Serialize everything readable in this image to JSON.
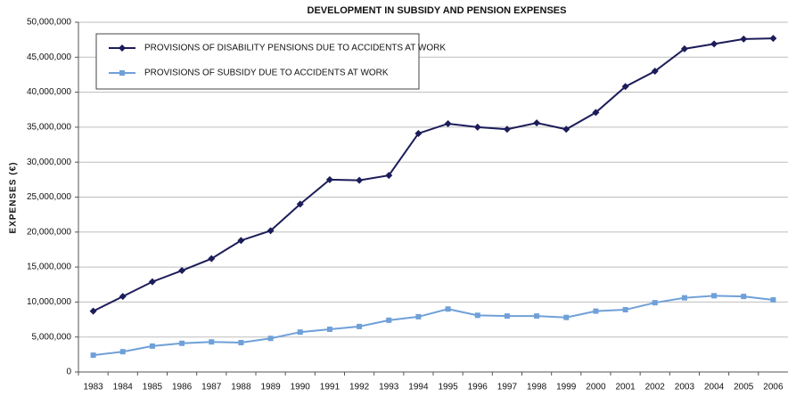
{
  "chart_data": {
    "type": "line",
    "title": "DEVELOPMENT IN SUBSIDY AND PENSION EXPENSES",
    "y_label": "EXPENSES (€)",
    "categories": [
      "1983",
      "1984",
      "1985",
      "1986",
      "1987",
      "1988",
      "1989",
      "1990",
      "1991",
      "1992",
      "1993",
      "1994",
      "1995",
      "1996",
      "1997",
      "1998",
      "1999",
      "2000",
      "2001",
      "2002",
      "2003",
      "2004",
      "2005",
      "2006"
    ],
    "series": [
      {
        "name": "PROVISIONS OF DISABILITY PENSIONS DUE TO ACCIDENTS AT WORK",
        "color": "#1c1c5a",
        "marker": "diamond",
        "values": [
          8700000,
          10800000,
          12900000,
          14500000,
          16200000,
          18800000,
          20200000,
          24000000,
          27500000,
          27400000,
          28100000,
          34100000,
          35500000,
          35000000,
          34700000,
          35600000,
          34700000,
          37100000,
          40800000,
          43000000,
          46200000,
          46900000,
          47600000,
          47700000
        ]
      },
      {
        "name": "PROVISIONS OF SUBSIDY DUE TO ACCIDENTS AT WORK",
        "color": "#6fa0d8",
        "marker": "square",
        "values": [
          2400000,
          2900000,
          3700000,
          4100000,
          4300000,
          4200000,
          4800000,
          5700000,
          6100000,
          6500000,
          7400000,
          7900000,
          9000000,
          8100000,
          8000000,
          8000000,
          7800000,
          8700000,
          8900000,
          9900000,
          10600000,
          10900000,
          10800000,
          10300000
        ]
      }
    ],
    "ylim": [
      0,
      50000000
    ],
    "yticks": [
      0,
      {
        "value": 5000000,
        "label": "5,000,000"
      },
      {
        "value": 10000000,
        "label": "10,000,000"
      },
      {
        "value": 15000000,
        "label": "15,000,000"
      },
      {
        "value": 20000000,
        "label": "20,000,000"
      },
      {
        "value": 25000000,
        "label": "25,000,000"
      },
      {
        "value": 30000000,
        "label": "30,000,000"
      },
      {
        "value": 35000000,
        "label": "35,000,000"
      },
      {
        "value": 40000000,
        "label": "40,000,000"
      },
      {
        "value": 45000000,
        "label": "45,000,000"
      },
      {
        "value": 50000000,
        "label": "50,000,000"
      }
    ],
    "grid": true,
    "legend": "upper left"
  }
}
